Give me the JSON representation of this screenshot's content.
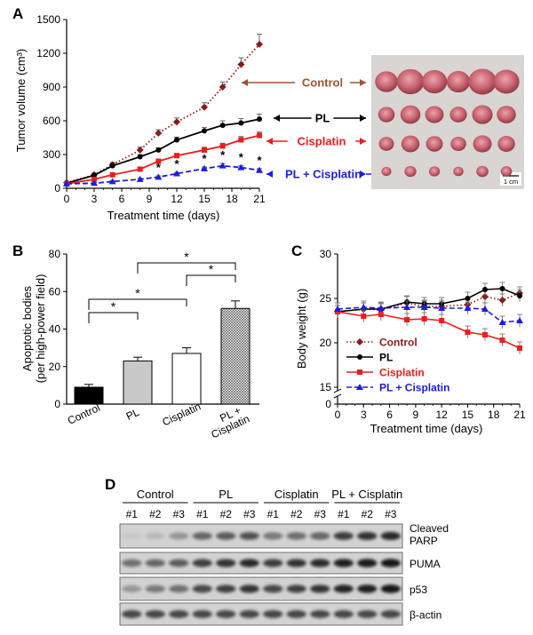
{
  "panels": {
    "a": "A",
    "b": "B",
    "c": "C",
    "d": "D"
  },
  "colors": {
    "control": "#8b1a1a",
    "control_label": "#a0522d",
    "pl": "#000000",
    "cisplatin": "#ee1c1c",
    "pl_cisplatin": "#1c1ce0"
  },
  "chart_data": [
    {
      "id": "A",
      "type": "line",
      "xlabel": "Treatment time (days)",
      "ylabel": "Tumor volume (cm³)",
      "xlim": [
        0,
        21
      ],
      "ylim": [
        0,
        1500
      ],
      "x_ticks": [
        "0",
        "3",
        "6",
        "9",
        "12",
        "15",
        "18",
        "21"
      ],
      "y_ticks": [
        "0",
        "300",
        "600",
        "900",
        "1200",
        "1500"
      ],
      "series": [
        {
          "name": "Control",
          "style": "dotted",
          "marker": "diamond",
          "x": [
            0,
            3,
            5,
            8,
            10,
            12,
            15,
            17,
            19,
            21
          ],
          "y": [
            50,
            120,
            210,
            340,
            490,
            590,
            720,
            900,
            1100,
            1280
          ],
          "err": [
            10,
            15,
            20,
            25,
            30,
            35,
            40,
            45,
            60,
            90
          ]
        },
        {
          "name": "PL",
          "style": "solid",
          "marker": "circle",
          "x": [
            0,
            3,
            5,
            8,
            10,
            12,
            15,
            17,
            19,
            21
          ],
          "y": [
            45,
            115,
            200,
            280,
            340,
            430,
            510,
            560,
            580,
            615
          ],
          "err": [
            8,
            12,
            15,
            20,
            20,
            25,
            30,
            40,
            40,
            45
          ]
        },
        {
          "name": "Cisplatin",
          "style": "solid",
          "marker": "square",
          "x": [
            0,
            3,
            5,
            8,
            10,
            12,
            15,
            17,
            19,
            21
          ],
          "y": [
            40,
            80,
            120,
            170,
            240,
            290,
            340,
            375,
            430,
            470
          ],
          "err": [
            8,
            10,
            12,
            15,
            20,
            20,
            25,
            25,
            30,
            30
          ]
        },
        {
          "name": "PL + Cisplatin",
          "style": "dashed",
          "marker": "triangle",
          "x": [
            0,
            3,
            5,
            8,
            10,
            12,
            15,
            17,
            19,
            21
          ],
          "y": [
            40,
            45,
            60,
            80,
            100,
            130,
            175,
            200,
            185,
            160
          ],
          "err": [
            5,
            5,
            8,
            10,
            10,
            12,
            15,
            20,
            15,
            15
          ]
        }
      ],
      "significance_marker": "*",
      "significance_x": [
        10,
        12,
        15,
        17,
        19,
        21
      ],
      "callouts": [
        "Control",
        "PL",
        "Cisplatin",
        "PL + Cisplatin"
      ],
      "scale_bar_label": "1 cm"
    },
    {
      "id": "B",
      "type": "bar",
      "ylabel_lines": [
        "Apoptotic bodies",
        "(per high-power field)"
      ],
      "ylim": [
        0,
        80
      ],
      "y_ticks": [
        "0",
        "20",
        "40",
        "60",
        "80"
      ],
      "categories": [
        "Control",
        "PL",
        "Cisplatin",
        "PL + Cisplatin"
      ],
      "category_label_lines": [
        [
          "Control"
        ],
        [
          "PL"
        ],
        [
          "Cisplatin"
        ],
        [
          "PL +",
          "Cisplatin"
        ]
      ],
      "values": [
        9,
        23,
        27,
        51
      ],
      "errors": [
        1.5,
        2,
        3,
        4
      ],
      "fills": [
        "black",
        "lightgray",
        "white",
        "hatched"
      ],
      "comparisons": [
        {
          "from": 0,
          "to": 1,
          "label": "*"
        },
        {
          "from": 0,
          "to": 2,
          "label": "*"
        },
        {
          "from": 1,
          "to": 3,
          "label": "*"
        },
        {
          "from": 2,
          "to": 3,
          "label": "*"
        }
      ]
    },
    {
      "id": "C",
      "type": "line",
      "xlabel": "Treatment time (days)",
      "ylabel": "Body weight (g)",
      "xlim": [
        0,
        21
      ],
      "ylim": [
        0,
        30
      ],
      "x_ticks": [
        "0",
        "3",
        "6",
        "9",
        "12",
        "15",
        "18",
        "21"
      ],
      "y_ticks": [
        "0",
        "15",
        "20",
        "25",
        "30"
      ],
      "legend": [
        "Control",
        "PL",
        "Cisplatin",
        "PL + Cisplatin"
      ],
      "legend_placement": "bottom-left",
      "series": [
        {
          "name": "Control",
          "style": "dotted",
          "marker": "diamond",
          "x": [
            0,
            3,
            5,
            8,
            10,
            12,
            15,
            17,
            19,
            21
          ],
          "y": [
            23.5,
            23.8,
            23.7,
            24.5,
            24.1,
            24.1,
            24.3,
            25.2,
            24.8,
            25.6
          ]
        },
        {
          "name": "PL",
          "style": "solid",
          "marker": "circle",
          "x": [
            0,
            3,
            5,
            8,
            10,
            12,
            15,
            17,
            19,
            21
          ],
          "y": [
            23.5,
            23.8,
            23.8,
            24.6,
            24.4,
            24.4,
            25.0,
            26.0,
            26.1,
            25.3
          ]
        },
        {
          "name": "Cisplatin",
          "style": "solid",
          "marker": "square",
          "x": [
            0,
            3,
            5,
            8,
            10,
            12,
            15,
            17,
            19,
            21
          ],
          "y": [
            23.5,
            23.0,
            23.2,
            22.6,
            22.7,
            22.5,
            21.2,
            20.9,
            20.3,
            19.4
          ]
        },
        {
          "name": "PL + Cisplatin",
          "style": "dashed",
          "marker": "triangle",
          "x": [
            0,
            3,
            5,
            8,
            10,
            12,
            15,
            17,
            19,
            21
          ],
          "y": [
            23.8,
            24.0,
            23.9,
            24.0,
            24.0,
            23.9,
            23.9,
            23.8,
            22.3,
            22.5
          ]
        }
      ]
    }
  ],
  "blot": {
    "groups": [
      "Control",
      "PL",
      "Cisplatin",
      "PL + Cisplatin"
    ],
    "lanes": [
      "#1",
      "#2",
      "#3",
      "#1",
      "#2",
      "#3",
      "#1",
      "#2",
      "#3",
      "#1",
      "#2",
      "#3"
    ],
    "rows": [
      {
        "label_lines": [
          "Cleaved",
          "PARP"
        ],
        "intensity": [
          0.05,
          0.12,
          0.3,
          0.55,
          0.6,
          0.65,
          0.45,
          0.5,
          0.55,
          0.75,
          0.8,
          0.85
        ]
      },
      {
        "label_lines": [
          "PUMA"
        ],
        "intensity": [
          0.5,
          0.55,
          0.6,
          0.75,
          0.8,
          0.85,
          0.75,
          0.8,
          0.85,
          0.9,
          0.92,
          0.95
        ]
      },
      {
        "label_lines": [
          "p53"
        ],
        "intensity": [
          0.3,
          0.45,
          0.5,
          0.7,
          0.75,
          0.8,
          0.7,
          0.75,
          0.8,
          0.88,
          0.9,
          0.95
        ]
      },
      {
        "label_lines": [
          "β-actin"
        ],
        "intensity": [
          0.7,
          0.7,
          0.7,
          0.7,
          0.7,
          0.7,
          0.7,
          0.7,
          0.7,
          0.7,
          0.7,
          0.7
        ]
      }
    ]
  }
}
